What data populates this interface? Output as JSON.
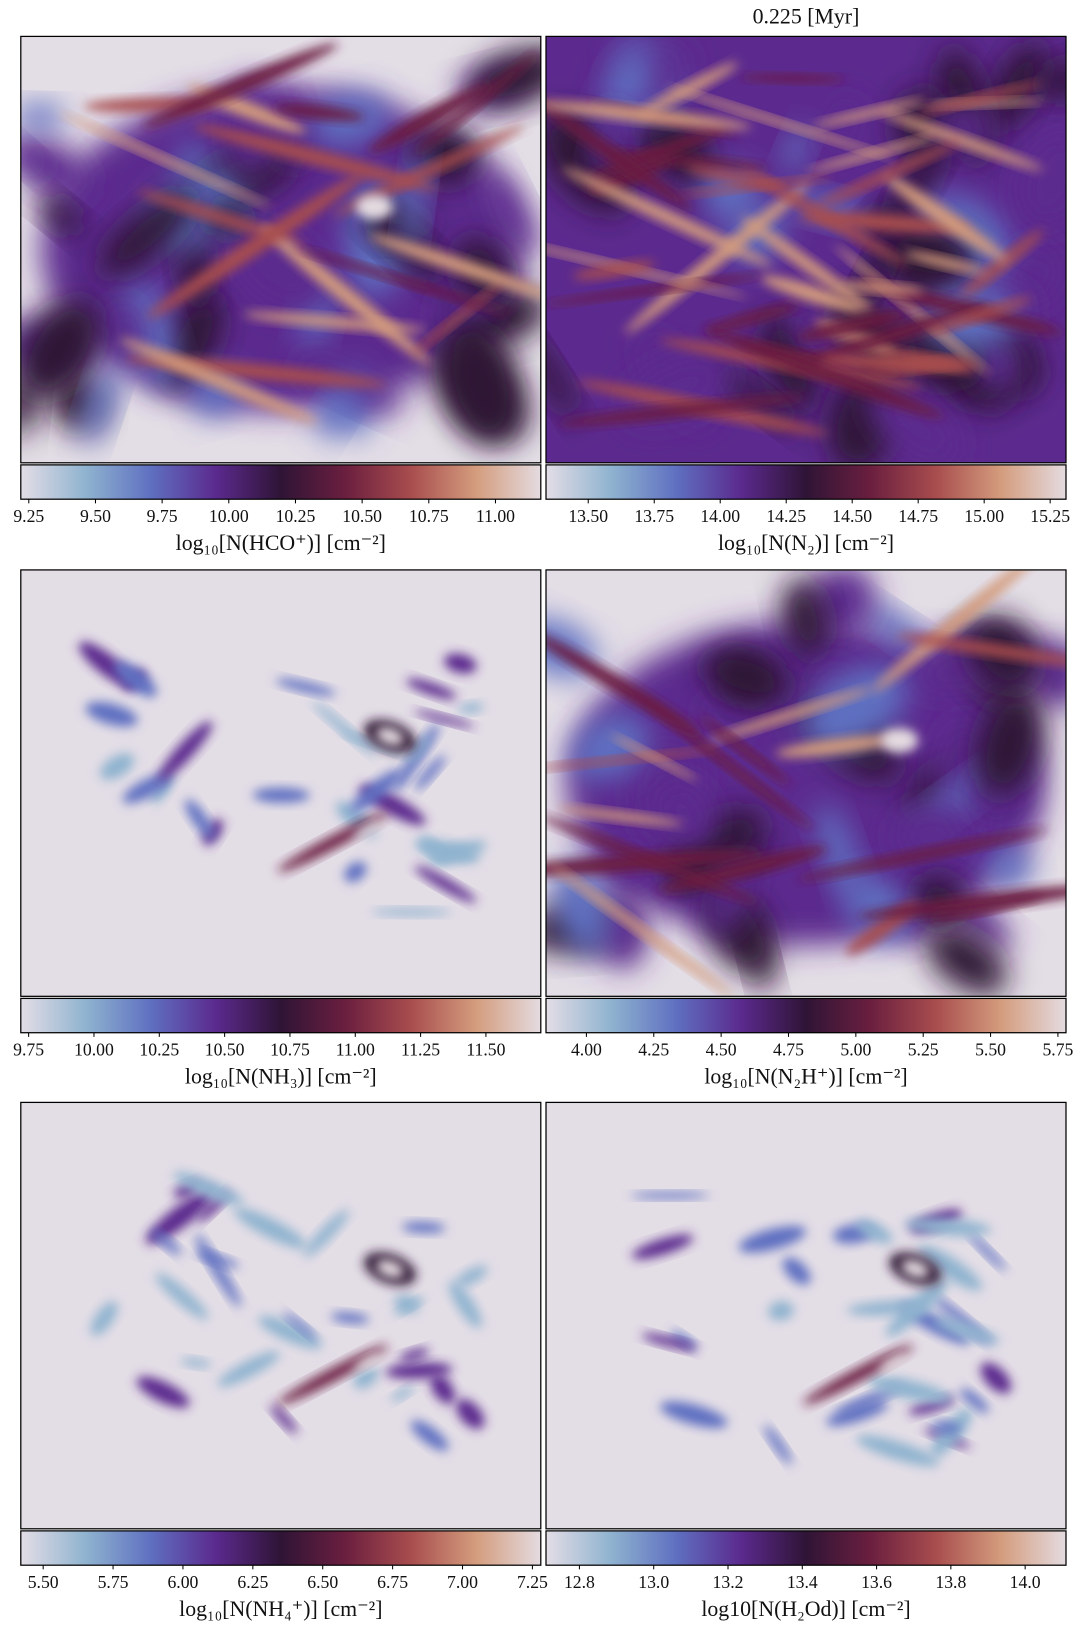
{
  "chart_data": [
    {
      "type": "heatmap",
      "xlabel": "log₁₀[N(HCO⁺)] [cm⁻²]",
      "xlim": [
        9.22,
        11.17
      ],
      "xticks": [
        9.25,
        {
          "value": 9.5,
          "label": "9.50"
        },
        9.75,
        {
          "value": 10,
          "label": "10.00"
        },
        10.25,
        {
          "value": 10.5,
          "label": "10.50"
        },
        10.75,
        {
          "value": 11,
          "label": "11.00"
        }
      ],
      "colormap": [
        "#e3dde6",
        "#8fb3cf",
        "#5f70c1",
        "#5b2a8e",
        "#2f1436",
        "#6b1f3f",
        "#a84d4e",
        "#d49c7d",
        "#e4dbe0"
      ]
    },
    {
      "type": "heatmap",
      "title": "0.225 [Myr]",
      "xlabel": "log₁₀[N(N₂)] [cm⁻²]",
      "xlim": [
        13.34,
        15.31
      ],
      "xticks": [
        {
          "value": 13.5,
          "label": "13.50"
        },
        13.75,
        {
          "value": 14,
          "label": "14.00"
        },
        14.25,
        {
          "value": 14.5,
          "label": "14.50"
        },
        14.75,
        {
          "value": 15,
          "label": "15.00"
        },
        15.25
      ],
      "colormap": [
        "#e3dde6",
        "#8fb3cf",
        "#5f70c1",
        "#5b2a8e",
        "#2f1436",
        "#6b1f3f",
        "#a84d4e",
        "#d49c7d",
        "#e4dbe0"
      ]
    },
    {
      "type": "heatmap",
      "xlabel": "log₁₀[N(NH₃)] [cm⁻²]",
      "xlim": [
        9.72,
        11.71
      ],
      "xticks": [
        9.75,
        {
          "value": 10,
          "label": "10.00"
        },
        10.25,
        {
          "value": 10.5,
          "label": "10.50"
        },
        10.75,
        {
          "value": 11,
          "label": "11.00"
        },
        11.25,
        {
          "value": 11.5,
          "label": "11.50"
        }
      ],
      "colormap": [
        "#e3dde6",
        "#8fb3cf",
        "#5f70c1",
        "#5b2a8e",
        "#2f1436",
        "#6b1f3f",
        "#a84d4e",
        "#d49c7d",
        "#e4dbe0"
      ]
    },
    {
      "type": "heatmap",
      "xlabel": "log₁₀[N(N₂H⁺)] [cm⁻²]",
      "xlim": [
        3.85,
        5.78
      ],
      "xticks": [
        {
          "value": 4,
          "label": "4.00"
        },
        4.25,
        {
          "value": 4.5,
          "label": "4.50"
        },
        4.75,
        {
          "value": 5,
          "label": "5.00"
        },
        5.25,
        {
          "value": 5.5,
          "label": "5.50"
        },
        5.75
      ],
      "colormap": [
        "#e3dde6",
        "#8fb3cf",
        "#5f70c1",
        "#5b2a8e",
        "#2f1436",
        "#6b1f3f",
        "#a84d4e",
        "#d49c7d",
        "#e4dbe0"
      ]
    },
    {
      "type": "heatmap",
      "xlabel": "log₁₀[N(NH₄⁺)] [cm⁻²]",
      "xlim": [
        5.42,
        7.28
      ],
      "xticks": [
        {
          "value": 5.5,
          "label": "5.50"
        },
        5.75,
        {
          "value": 6,
          "label": "6.00"
        },
        6.25,
        {
          "value": 6.5,
          "label": "6.50"
        },
        6.75,
        {
          "value": 7,
          "label": "7.00"
        },
        7.25
      ],
      "colormap": [
        "#e3dde6",
        "#8fb3cf",
        "#5f70c1",
        "#5b2a8e",
        "#2f1436",
        "#6b1f3f",
        "#a84d4e",
        "#d49c7d",
        "#e4dbe0"
      ]
    },
    {
      "type": "heatmap",
      "xlabel": "log10[N(H₂Od)] [cm⁻²]",
      "xlim": [
        12.71,
        14.11
      ],
      "xticks": [
        12.8,
        {
          "value": 13,
          "label": "13.0"
        },
        13.2,
        13.4,
        13.6,
        13.8,
        {
          "value": 14,
          "label": "14.0"
        }
      ],
      "colormap": [
        "#e3dde6",
        "#8fb3cf",
        "#5f70c1",
        "#5b2a8e",
        "#2f1436",
        "#6b1f3f",
        "#a84d4e",
        "#d49c7d",
        "#e4dbe0"
      ]
    }
  ]
}
